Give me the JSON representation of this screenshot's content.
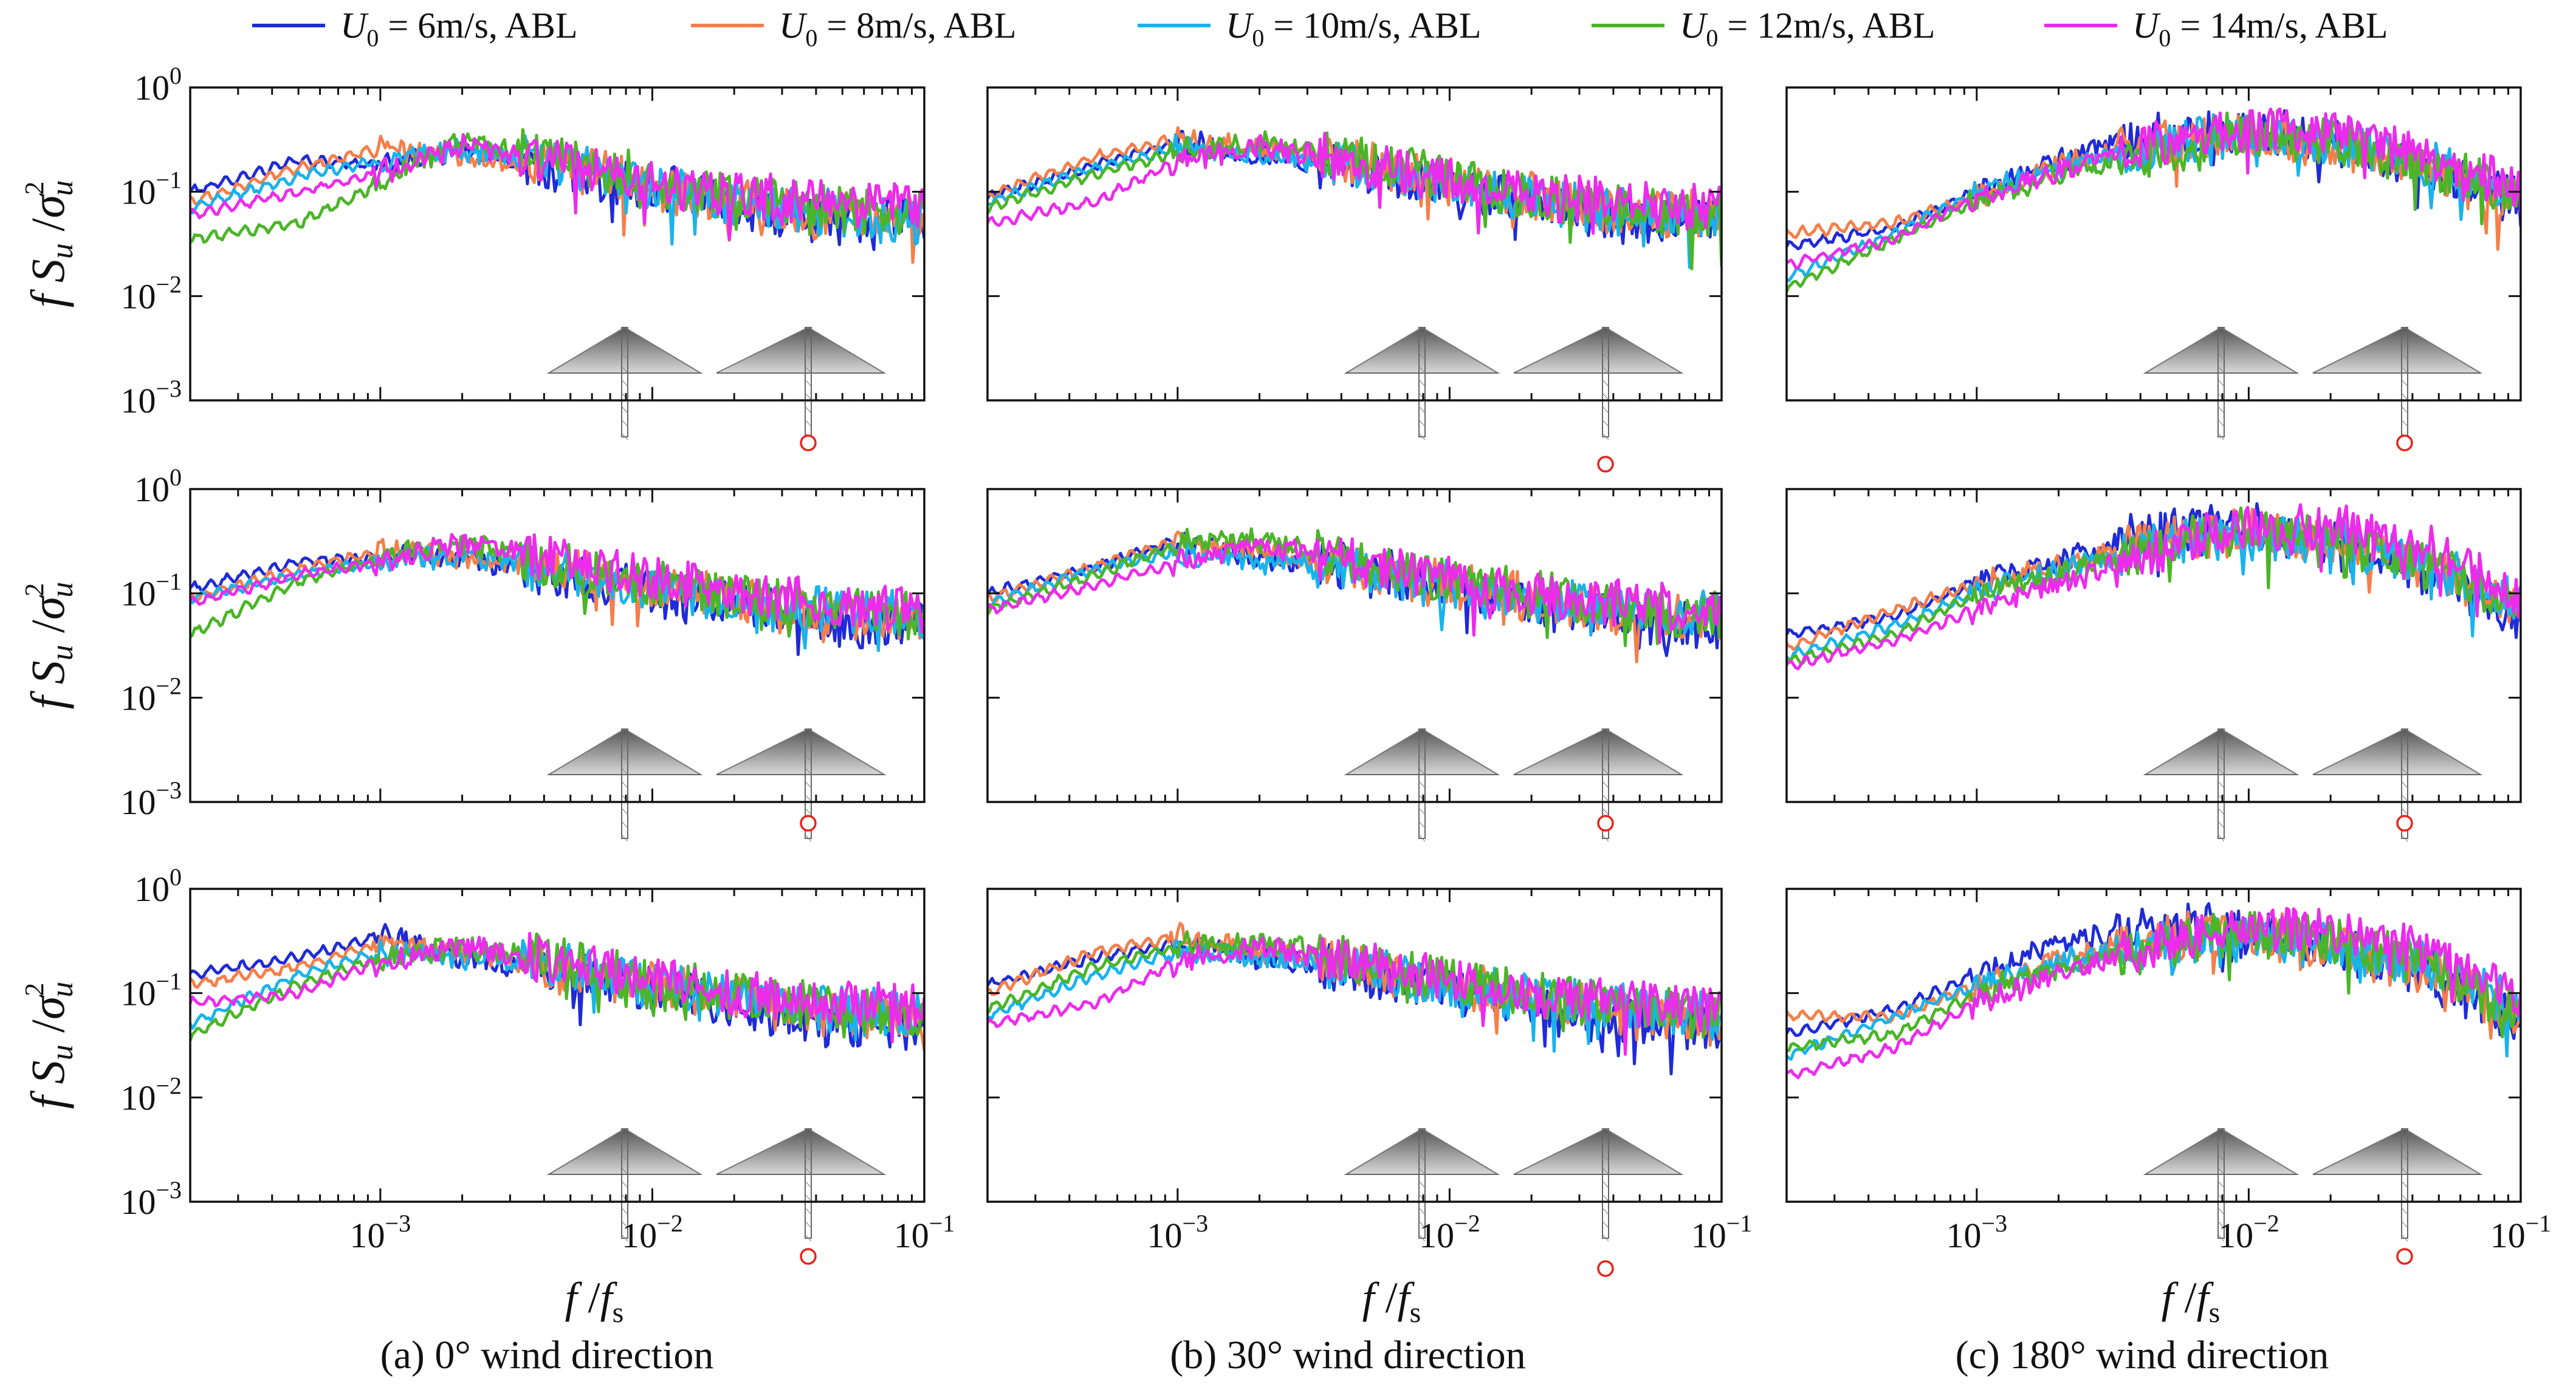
{
  "colors": {
    "u6": "#1f2bd6",
    "u8": "#f47f4a",
    "u10": "#19b3ec",
    "u12": "#4bb527",
    "u14": "#ec2bec",
    "marker": "#e8231c",
    "axis": "#111111"
  },
  "legend": {
    "items": [
      {
        "key": "u6",
        "symbol": "U",
        "sub": "0",
        "text": " = 6m/s, ABL"
      },
      {
        "key": "u8",
        "symbol": "U",
        "sub": "0",
        "text": " = 8m/s, ABL"
      },
      {
        "key": "u10",
        "symbol": "U",
        "sub": "0",
        "text": " = 10m/s, ABL"
      },
      {
        "key": "u12",
        "symbol": "U",
        "sub": "0",
        "text": " = 12m/s, ABL"
      },
      {
        "key": "u14",
        "symbol": "U",
        "sub": "0",
        "text": " = 14m/s, ABL"
      }
    ]
  },
  "axes": {
    "ylabel": {
      "f": "f",
      "S": "S",
      "u": "u",
      "sigma": "σ",
      "sup": "2"
    },
    "xlabel": {
      "f": "f",
      "slash": "/",
      "fs": "f",
      "sub": "s"
    },
    "xticks": [
      {
        "base": "10",
        "exp": "−3",
        "value": 0.001
      },
      {
        "base": "10",
        "exp": "−2",
        "value": 0.01
      },
      {
        "base": "10",
        "exp": "−1",
        "value": 0.1
      }
    ],
    "yticks": [
      {
        "base": "10",
        "exp": "0",
        "value": 1
      },
      {
        "base": "10",
        "exp": "−1",
        "value": 0.1
      },
      {
        "base": "10",
        "exp": "−2",
        "value": 0.01
      },
      {
        "base": "10",
        "exp": "−3",
        "value": 0.001
      }
    ]
  },
  "captions": {
    "a": "(a) 0° wind direction",
    "b": "(b) 30° wind direction",
    "c": "(c) 180° wind direction"
  },
  "chart_data": {
    "type": "line",
    "scale": "log-log",
    "xlim": [
      0.0002,
      0.1
    ],
    "ylim": [
      0.001,
      1
    ],
    "series_names": [
      "U0 = 6m/s, ABL",
      "U0 = 8m/s, ABL",
      "U0 = 10m/s, ABL",
      "U0 = 12m/s, ABL",
      "U0 = 14m/s, ABL"
    ],
    "x": [
      0.0002,
      0.0005,
      0.001,
      0.002,
      0.005,
      0.01,
      0.02,
      0.05,
      0.1
    ],
    "panels": [
      {
        "id": "a1",
        "column": "a",
        "row": 1,
        "marker_y": 0.0055,
        "series": [
          {
            "key": "u6",
            "values": [
              0.1,
              0.2,
              0.18,
              0.25,
              0.15,
              0.12,
              0.07,
              0.05,
              0.06
            ]
          },
          {
            "key": "u8",
            "values": [
              0.08,
              0.17,
              0.26,
              0.22,
              0.17,
              0.11,
              0.08,
              0.06,
              0.06
            ]
          },
          {
            "key": "u10",
            "values": [
              0.07,
              0.14,
              0.2,
              0.25,
              0.18,
              0.11,
              0.08,
              0.06,
              0.05
            ]
          },
          {
            "key": "u12",
            "values": [
              0.035,
              0.05,
              0.12,
              0.32,
              0.2,
              0.13,
              0.09,
              0.07,
              0.06
            ]
          },
          {
            "key": "u14",
            "values": [
              0.06,
              0.1,
              0.15,
              0.28,
              0.18,
              0.12,
              0.09,
              0.08,
              0.07
            ]
          }
        ]
      },
      {
        "id": "b1",
        "column": "b",
        "row": 1,
        "marker_y": 0.0045,
        "series": [
          {
            "key": "u6",
            "values": [
              0.09,
              0.18,
              0.3,
              0.22,
              0.16,
              0.11,
              0.08,
              0.05,
              0.05
            ]
          },
          {
            "key": "u8",
            "values": [
              0.09,
              0.22,
              0.32,
              0.25,
              0.18,
              0.12,
              0.09,
              0.06,
              0.06
            ]
          },
          {
            "key": "u10",
            "values": [
              0.08,
              0.17,
              0.26,
              0.22,
              0.17,
              0.12,
              0.08,
              0.06,
              0.06
            ]
          },
          {
            "key": "u12",
            "values": [
              0.07,
              0.15,
              0.24,
              0.3,
              0.2,
              0.13,
              0.09,
              0.07,
              0.06
            ]
          },
          {
            "key": "u14",
            "values": [
              0.05,
              0.08,
              0.2,
              0.28,
              0.18,
              0.13,
              0.09,
              0.08,
              0.07
            ]
          }
        ]
      },
      {
        "id": "c1",
        "column": "c",
        "row": 1,
        "marker_y": 0.0055,
        "series": [
          {
            "key": "u6",
            "values": [
              0.03,
              0.045,
              0.1,
              0.2,
              0.35,
              0.4,
              0.3,
              0.15,
              0.08
            ]
          },
          {
            "key": "u8",
            "values": [
              0.04,
              0.05,
              0.09,
              0.18,
              0.3,
              0.35,
              0.28,
              0.15,
              0.08
            ]
          },
          {
            "key": "u10",
            "values": [
              0.015,
              0.04,
              0.1,
              0.17,
              0.28,
              0.35,
              0.3,
              0.18,
              0.09
            ]
          },
          {
            "key": "u12",
            "values": [
              0.012,
              0.035,
              0.08,
              0.15,
              0.25,
              0.38,
              0.3,
              0.17,
              0.09
            ]
          },
          {
            "key": "u14",
            "values": [
              0.02,
              0.035,
              0.09,
              0.16,
              0.3,
              0.4,
              0.38,
              0.22,
              0.1
            ]
          }
        ]
      },
      {
        "id": "a2",
        "column": "a",
        "row": 2,
        "marker_y": 0.0065,
        "series": [
          {
            "key": "u6",
            "values": [
              0.11,
              0.2,
              0.22,
              0.22,
              0.14,
              0.1,
              0.08,
              0.05,
              0.05
            ]
          },
          {
            "key": "u8",
            "values": [
              0.09,
              0.17,
              0.25,
              0.22,
              0.17,
              0.12,
              0.09,
              0.06,
              0.06
            ]
          },
          {
            "key": "u10",
            "values": [
              0.09,
              0.15,
              0.2,
              0.23,
              0.16,
              0.12,
              0.09,
              0.07,
              0.06
            ]
          },
          {
            "key": "u12",
            "values": [
              0.04,
              0.13,
              0.22,
              0.3,
              0.18,
              0.12,
              0.09,
              0.07,
              0.06
            ]
          },
          {
            "key": "u14",
            "values": [
              0.08,
              0.15,
              0.2,
              0.3,
              0.2,
              0.14,
              0.1,
              0.08,
              0.07
            ]
          }
        ]
      },
      {
        "id": "b2",
        "column": "b",
        "row": 2,
        "marker_y": 0.0065,
        "series": [
          {
            "key": "u6",
            "values": [
              0.1,
              0.18,
              0.32,
              0.22,
              0.17,
              0.11,
              0.08,
              0.05,
              0.05
            ]
          },
          {
            "key": "u8",
            "values": [
              0.09,
              0.18,
              0.32,
              0.25,
              0.17,
              0.12,
              0.09,
              0.06,
              0.06
            ]
          },
          {
            "key": "u10",
            "values": [
              0.08,
              0.17,
              0.25,
              0.2,
              0.16,
              0.12,
              0.09,
              0.07,
              0.06
            ]
          },
          {
            "key": "u12",
            "values": [
              0.07,
              0.15,
              0.3,
              0.32,
              0.2,
              0.13,
              0.1,
              0.07,
              0.06
            ]
          },
          {
            "key": "u14",
            "values": [
              0.07,
              0.12,
              0.2,
              0.28,
              0.2,
              0.14,
              0.1,
              0.08,
              0.07
            ]
          }
        ]
      },
      {
        "id": "c2",
        "column": "c",
        "row": 2,
        "marker_y": 0.0065,
        "series": [
          {
            "key": "u6",
            "values": [
              0.04,
              0.06,
              0.13,
              0.2,
              0.45,
              0.45,
              0.3,
              0.15,
              0.06
            ]
          },
          {
            "key": "u8",
            "values": [
              0.03,
              0.07,
              0.12,
              0.18,
              0.35,
              0.4,
              0.3,
              0.16,
              0.07
            ]
          },
          {
            "key": "u10",
            "values": [
              0.025,
              0.05,
              0.1,
              0.17,
              0.3,
              0.35,
              0.32,
              0.18,
              0.08
            ]
          },
          {
            "key": "u12",
            "values": [
              0.022,
              0.04,
              0.1,
              0.15,
              0.3,
              0.4,
              0.35,
              0.17,
              0.07
            ]
          },
          {
            "key": "u14",
            "values": [
              0.02,
              0.035,
              0.07,
              0.12,
              0.28,
              0.45,
              0.45,
              0.25,
              0.09
            ]
          }
        ]
      },
      {
        "id": "a3",
        "column": "a",
        "row": 3,
        "marker_y": 0.0045,
        "series": [
          {
            "key": "u6",
            "values": [
              0.15,
              0.22,
              0.35,
              0.22,
              0.16,
              0.11,
              0.07,
              0.05,
              0.05
            ]
          },
          {
            "key": "u8",
            "values": [
              0.12,
              0.18,
              0.3,
              0.25,
              0.17,
              0.12,
              0.09,
              0.06,
              0.06
            ]
          },
          {
            "key": "u10",
            "values": [
              0.05,
              0.15,
              0.25,
              0.22,
              0.17,
              0.12,
              0.09,
              0.07,
              0.06
            ]
          },
          {
            "key": "u12",
            "values": [
              0.04,
              0.12,
              0.22,
              0.28,
              0.2,
              0.13,
              0.1,
              0.07,
              0.06
            ]
          },
          {
            "key": "u14",
            "values": [
              0.08,
              0.1,
              0.2,
              0.28,
              0.2,
              0.14,
              0.1,
              0.08,
              0.07
            ]
          }
        ]
      },
      {
        "id": "b3",
        "column": "b",
        "row": 3,
        "marker_y": 0.0038,
        "series": [
          {
            "key": "u6",
            "values": [
              0.12,
              0.22,
              0.3,
              0.22,
              0.15,
              0.11,
              0.07,
              0.05,
              0.05
            ]
          },
          {
            "key": "u8",
            "values": [
              0.1,
              0.25,
              0.35,
              0.25,
              0.18,
              0.12,
              0.09,
              0.06,
              0.06
            ]
          },
          {
            "key": "u10",
            "values": [
              0.06,
              0.15,
              0.25,
              0.22,
              0.17,
              0.12,
              0.09,
              0.07,
              0.06
            ]
          },
          {
            "key": "u12",
            "values": [
              0.07,
              0.18,
              0.28,
              0.32,
              0.2,
              0.13,
              0.1,
              0.07,
              0.06
            ]
          },
          {
            "key": "u14",
            "values": [
              0.05,
              0.08,
              0.2,
              0.28,
              0.18,
              0.13,
              0.1,
              0.08,
              0.07
            ]
          }
        ]
      },
      {
        "id": "c3",
        "column": "c",
        "row": 3,
        "marker_y": 0.0045,
        "series": [
          {
            "key": "u6",
            "values": [
              0.04,
              0.07,
              0.15,
              0.3,
              0.45,
              0.4,
              0.3,
              0.15,
              0.05
            ]
          },
          {
            "key": "u8",
            "values": [
              0.06,
              0.06,
              0.12,
              0.22,
              0.35,
              0.38,
              0.28,
              0.15,
              0.06
            ]
          },
          {
            "key": "u10",
            "values": [
              0.025,
              0.06,
              0.12,
              0.2,
              0.3,
              0.35,
              0.3,
              0.17,
              0.07
            ]
          },
          {
            "key": "u12",
            "values": [
              0.03,
              0.04,
              0.1,
              0.17,
              0.3,
              0.38,
              0.32,
              0.17,
              0.06
            ]
          },
          {
            "key": "u14",
            "values": [
              0.016,
              0.03,
              0.08,
              0.15,
              0.3,
              0.45,
              0.4,
              0.25,
              0.08
            ]
          }
        ]
      }
    ]
  }
}
